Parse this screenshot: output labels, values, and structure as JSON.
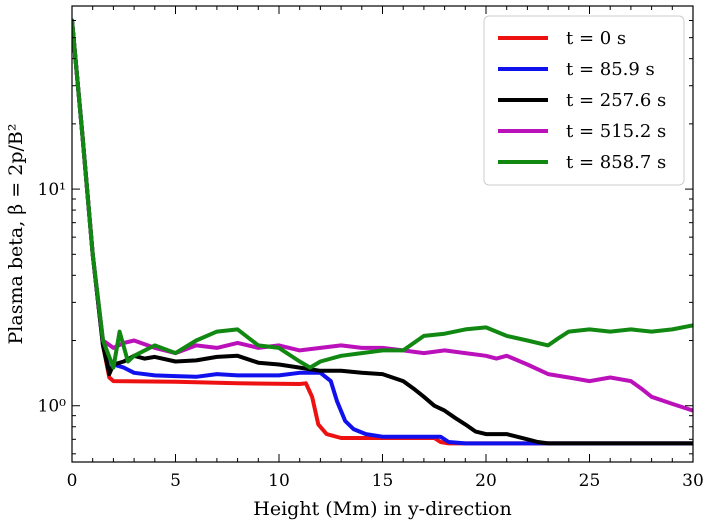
{
  "chart_data": {
    "type": "line",
    "xlabel": "Height (Mm) in y-direction",
    "ylabel": "Plasma beta, β = 2p/B²",
    "xlim": [
      0,
      30
    ],
    "ylim": [
      0.55,
      70
    ],
    "yscale": "log",
    "grid": false,
    "legend_position": "top-right",
    "x_ticks": [
      0,
      5,
      10,
      15,
      20,
      25,
      30
    ],
    "x_tick_labels": [
      "0",
      "5",
      "10",
      "15",
      "20",
      "25",
      "30"
    ],
    "y_major_ticks": [
      1,
      10
    ],
    "y_tick_labels": [
      "10⁰",
      "10¹"
    ],
    "series": [
      {
        "name": "t = 0 s",
        "color": "#ee1111",
        "points": [
          [
            0,
            60
          ],
          [
            0.5,
            18
          ],
          [
            1,
            5
          ],
          [
            1.5,
            1.9
          ],
          [
            1.8,
            1.35
          ],
          [
            2,
            1.3
          ],
          [
            5,
            1.29
          ],
          [
            8,
            1.27
          ],
          [
            11,
            1.26
          ],
          [
            11.3,
            1.27
          ],
          [
            11.6,
            1.1
          ],
          [
            11.9,
            0.82
          ],
          [
            12.3,
            0.74
          ],
          [
            13,
            0.71
          ],
          [
            15,
            0.71
          ],
          [
            17.5,
            0.71
          ],
          [
            17.8,
            0.68
          ],
          [
            18.2,
            0.67
          ],
          [
            20,
            0.67
          ],
          [
            25,
            0.67
          ],
          [
            30,
            0.67
          ]
        ]
      },
      {
        "name": "t = 85.9 s",
        "color": "#1111ee",
        "points": [
          [
            0,
            60
          ],
          [
            0.5,
            18
          ],
          [
            1,
            5
          ],
          [
            1.5,
            1.9
          ],
          [
            1.8,
            1.45
          ],
          [
            2,
            1.55
          ],
          [
            2.5,
            1.5
          ],
          [
            3,
            1.42
          ],
          [
            4,
            1.38
          ],
          [
            5,
            1.37
          ],
          [
            6,
            1.36
          ],
          [
            7,
            1.4
          ],
          [
            8,
            1.38
          ],
          [
            9,
            1.38
          ],
          [
            10,
            1.38
          ],
          [
            11,
            1.42
          ],
          [
            12,
            1.42
          ],
          [
            12.5,
            1.3
          ],
          [
            12.8,
            1.05
          ],
          [
            13.2,
            0.85
          ],
          [
            13.6,
            0.78
          ],
          [
            14.2,
            0.74
          ],
          [
            15,
            0.72
          ],
          [
            16,
            0.72
          ],
          [
            17,
            0.72
          ],
          [
            17.8,
            0.72
          ],
          [
            18.2,
            0.68
          ],
          [
            19,
            0.67
          ],
          [
            22,
            0.67
          ],
          [
            25,
            0.67
          ],
          [
            30,
            0.67
          ]
        ]
      },
      {
        "name": "t = 257.6 s",
        "color": "#000000",
        "points": [
          [
            0,
            60
          ],
          [
            0.5,
            18
          ],
          [
            1,
            5
          ],
          [
            1.5,
            1.9
          ],
          [
            1.8,
            1.4
          ],
          [
            2,
            1.55
          ],
          [
            2.5,
            1.6
          ],
          [
            3,
            1.7
          ],
          [
            3.5,
            1.65
          ],
          [
            4,
            1.68
          ],
          [
            5,
            1.6
          ],
          [
            6,
            1.62
          ],
          [
            7,
            1.68
          ],
          [
            8,
            1.7
          ],
          [
            9,
            1.58
          ],
          [
            10,
            1.55
          ],
          [
            11,
            1.5
          ],
          [
            12,
            1.45
          ],
          [
            13,
            1.45
          ],
          [
            14,
            1.42
          ],
          [
            15,
            1.4
          ],
          [
            16,
            1.3
          ],
          [
            16.5,
            1.2
          ],
          [
            17,
            1.1
          ],
          [
            17.5,
            1.0
          ],
          [
            18,
            0.95
          ],
          [
            18.5,
            0.88
          ],
          [
            19,
            0.82
          ],
          [
            19.5,
            0.76
          ],
          [
            20,
            0.74
          ],
          [
            21,
            0.74
          ],
          [
            21.5,
            0.72
          ],
          [
            22,
            0.7
          ],
          [
            22.5,
            0.68
          ],
          [
            23,
            0.67
          ],
          [
            25,
            0.67
          ],
          [
            30,
            0.67
          ]
        ]
      },
      {
        "name": "t = 515.2 s",
        "color": "#bb11bb",
        "points": [
          [
            0,
            60
          ],
          [
            0.5,
            18
          ],
          [
            1,
            5
          ],
          [
            1.5,
            2.0
          ],
          [
            2,
            1.85
          ],
          [
            2.5,
            1.95
          ],
          [
            3,
            2.0
          ],
          [
            4,
            1.85
          ],
          [
            5,
            1.75
          ],
          [
            6,
            1.9
          ],
          [
            7,
            1.85
          ],
          [
            8,
            1.95
          ],
          [
            9,
            1.85
          ],
          [
            10,
            1.9
          ],
          [
            11,
            1.8
          ],
          [
            12,
            1.85
          ],
          [
            13,
            1.9
          ],
          [
            14,
            1.85
          ],
          [
            15,
            1.85
          ],
          [
            16,
            1.8
          ],
          [
            17,
            1.75
          ],
          [
            18,
            1.8
          ],
          [
            19,
            1.75
          ],
          [
            20,
            1.7
          ],
          [
            20.5,
            1.65
          ],
          [
            21,
            1.7
          ],
          [
            22,
            1.55
          ],
          [
            23,
            1.4
          ],
          [
            24,
            1.35
          ],
          [
            25,
            1.3
          ],
          [
            26,
            1.35
          ],
          [
            27,
            1.3
          ],
          [
            27.5,
            1.2
          ],
          [
            28,
            1.1
          ],
          [
            29,
            1.02
          ],
          [
            30,
            0.95
          ]
        ]
      },
      {
        "name": "t = 858.7 s",
        "color": "#118811",
        "points": [
          [
            0,
            60
          ],
          [
            0.5,
            18
          ],
          [
            1,
            5
          ],
          [
            1.5,
            2.0
          ],
          [
            2,
            1.5
          ],
          [
            2.3,
            2.2
          ],
          [
            2.7,
            1.6
          ],
          [
            3,
            1.7
          ],
          [
            4,
            1.9
          ],
          [
            5,
            1.75
          ],
          [
            6,
            2.0
          ],
          [
            7,
            2.2
          ],
          [
            8,
            2.25
          ],
          [
            9,
            1.9
          ],
          [
            10,
            1.85
          ],
          [
            11,
            1.6
          ],
          [
            11.5,
            1.5
          ],
          [
            12,
            1.6
          ],
          [
            13,
            1.7
          ],
          [
            14,
            1.75
          ],
          [
            15,
            1.8
          ],
          [
            16,
            1.8
          ],
          [
            17,
            2.1
          ],
          [
            18,
            2.15
          ],
          [
            19,
            2.25
          ],
          [
            20,
            2.3
          ],
          [
            21,
            2.1
          ],
          [
            22,
            2.0
          ],
          [
            23,
            1.9
          ],
          [
            23.5,
            2.05
          ],
          [
            24,
            2.2
          ],
          [
            25,
            2.25
          ],
          [
            26,
            2.2
          ],
          [
            27,
            2.25
          ],
          [
            28,
            2.2
          ],
          [
            29,
            2.25
          ],
          [
            30,
            2.35
          ]
        ]
      }
    ]
  }
}
